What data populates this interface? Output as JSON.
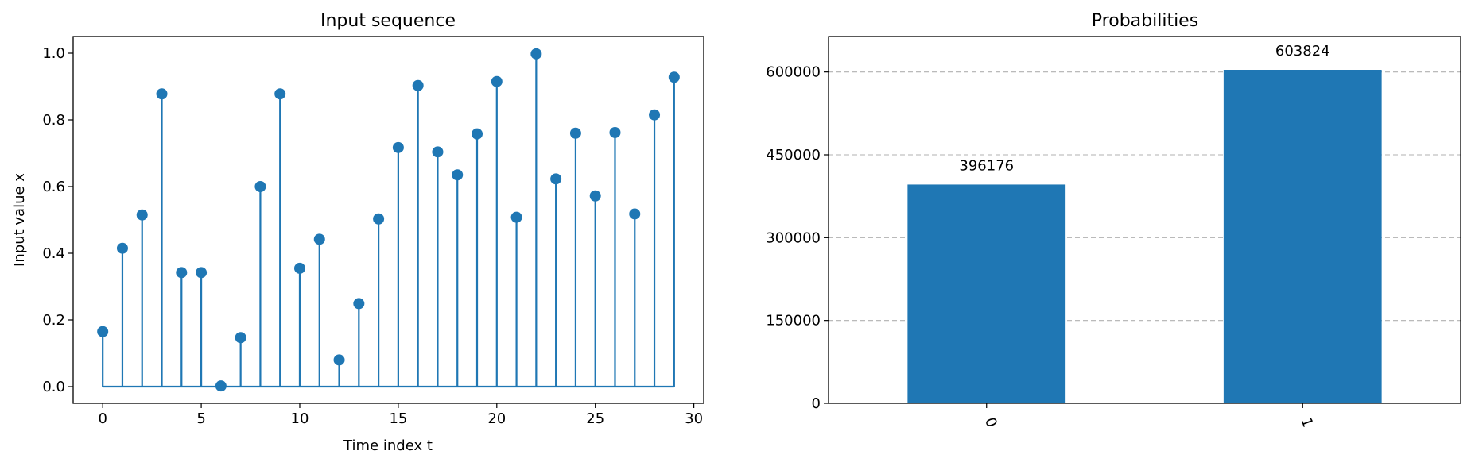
{
  "chart_data": [
    {
      "type": "stem",
      "title": "Input sequence",
      "xlabel": "Time index t",
      "ylabel": "Input value x",
      "xlim": [
        -1.5,
        30.5
      ],
      "ylim": [
        -0.05,
        1.05
      ],
      "xticks": [
        0,
        5,
        10,
        15,
        20,
        25,
        30
      ],
      "yticks": [
        0.0,
        0.2,
        0.4,
        0.6,
        0.8,
        1.0
      ],
      "ytick_labels": [
        "0.0",
        "0.2",
        "0.4",
        "0.6",
        "0.8",
        "1.0"
      ],
      "grid": false,
      "color": "#1f77b4",
      "x": [
        0,
        1,
        2,
        3,
        4,
        5,
        6,
        7,
        8,
        9,
        10,
        11,
        12,
        13,
        14,
        15,
        16,
        17,
        18,
        19,
        20,
        21,
        22,
        23,
        24,
        25,
        26,
        27,
        28,
        29
      ],
      "y": [
        0.165,
        0.415,
        0.515,
        0.878,
        0.342,
        0.342,
        0.002,
        0.147,
        0.6,
        0.878,
        0.355,
        0.442,
        0.08,
        0.249,
        0.503,
        0.717,
        0.903,
        0.704,
        0.635,
        0.758,
        0.915,
        0.508,
        0.998,
        0.623,
        0.76,
        0.572,
        0.762,
        0.518,
        0.815,
        0.928
      ]
    },
    {
      "type": "bar",
      "title": "Probabilities",
      "xlabel": "",
      "ylabel": "",
      "categories": [
        "0",
        "1"
      ],
      "values": [
        396176,
        603824
      ],
      "data_labels": [
        "396176",
        "603824"
      ],
      "ylim": [
        0,
        664206
      ],
      "yticks": [
        0,
        150000,
        300000,
        450000,
        600000
      ],
      "ytick_labels": [
        "0",
        "150000",
        "300000",
        "450000",
        "600000"
      ],
      "xtick_rotation": 70,
      "grid": "y dashed",
      "color": "#1f77b4"
    }
  ]
}
